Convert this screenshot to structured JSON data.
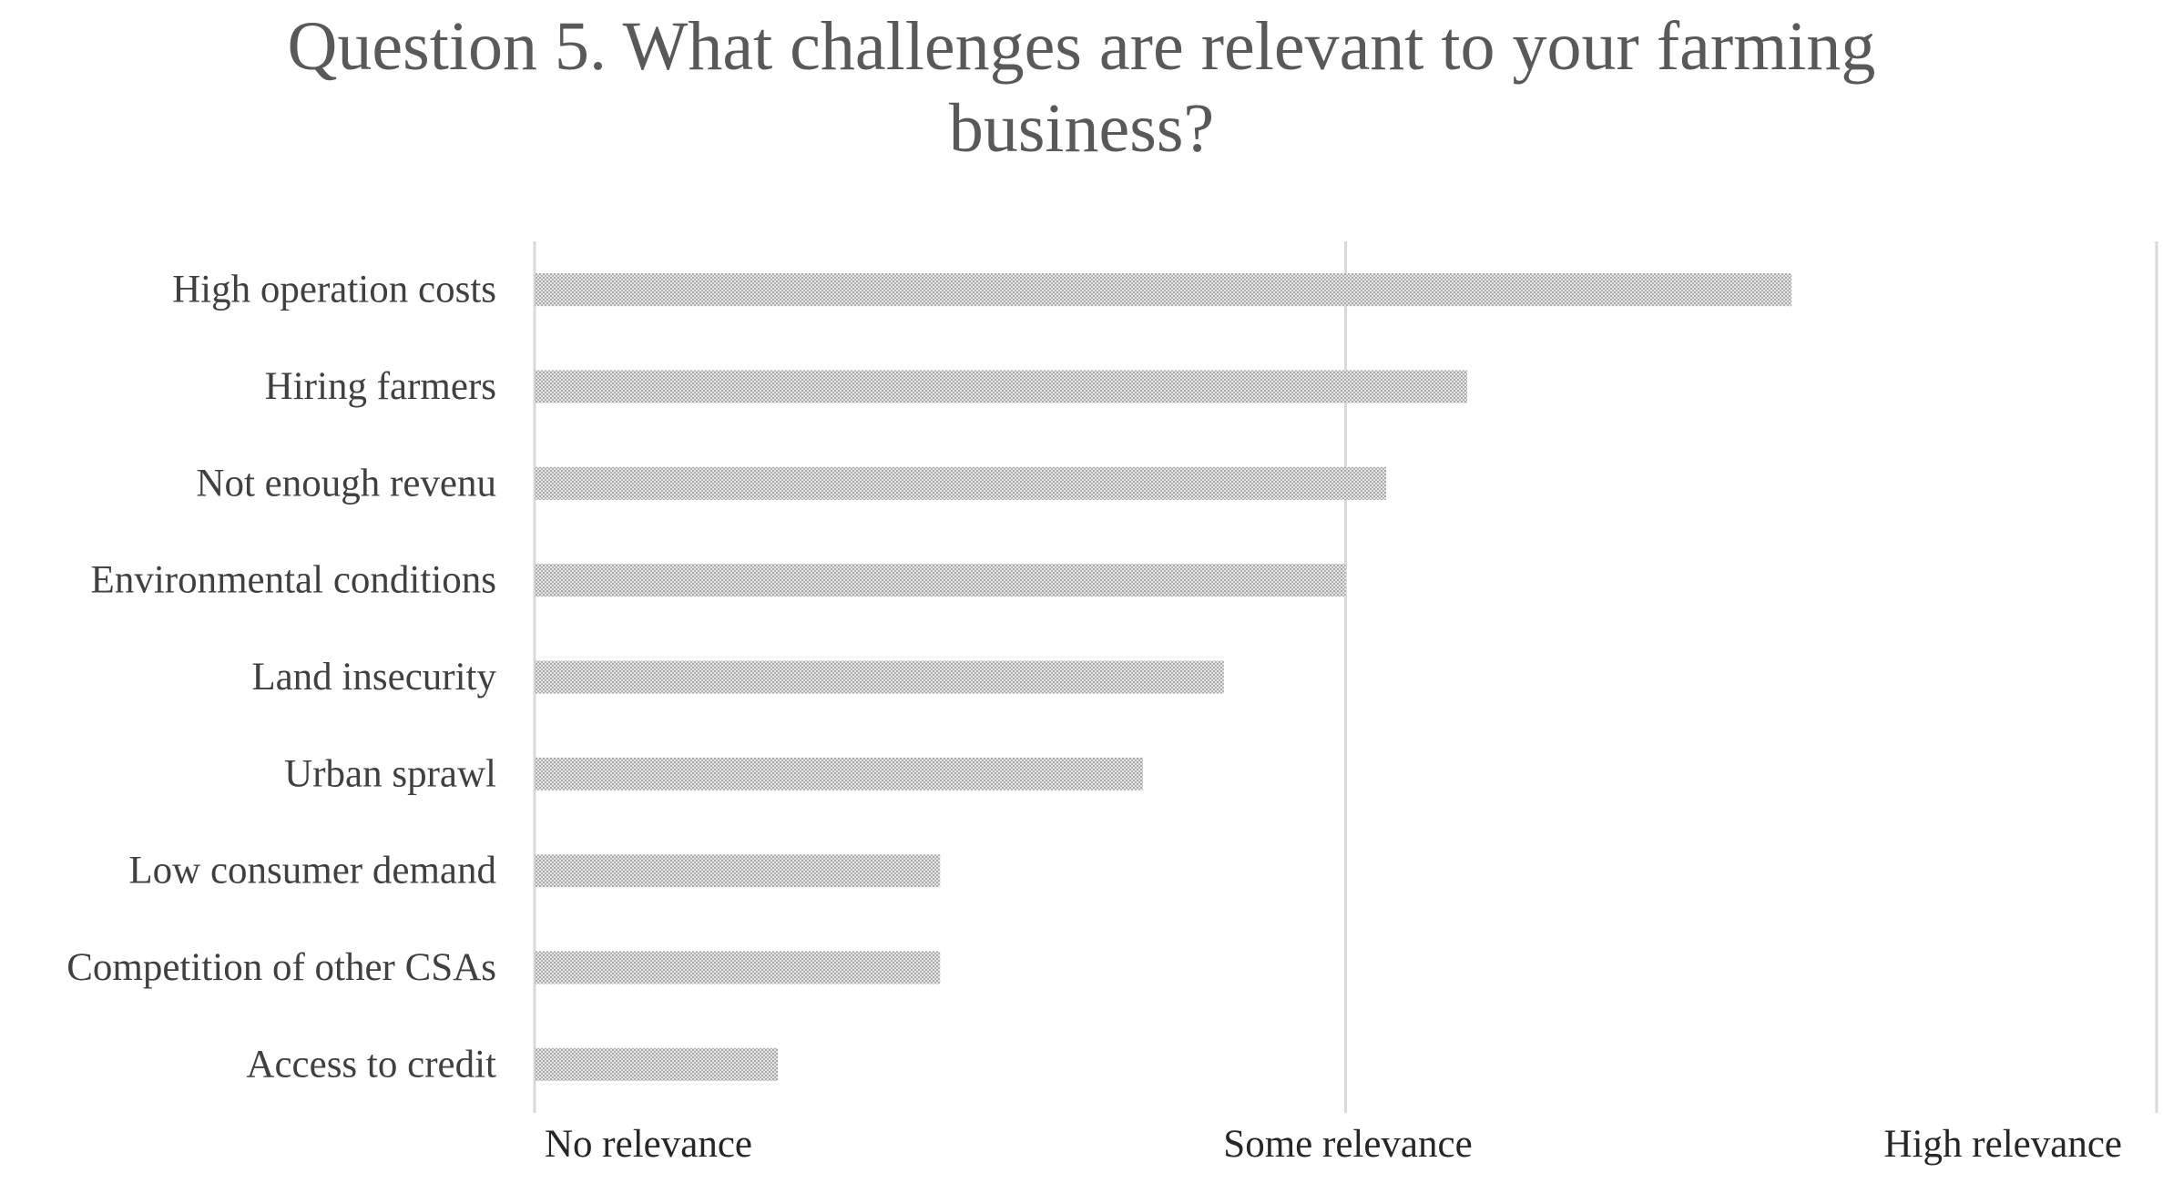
{
  "chart_data": {
    "type": "bar",
    "orientation": "horizontal",
    "title": "Question 5. What challenges are relevant to your farming business?",
    "categories": [
      "High operation costs",
      "Hiring farmers",
      "Not enough revenu",
      "Environmental conditions",
      "Land insecurity",
      "Urban sprawl",
      "Low consumer demand",
      "Competition of other CSAs",
      "Access to credit"
    ],
    "values": [
      1.55,
      1.15,
      1.05,
      1.0,
      0.85,
      0.75,
      0.5,
      0.5,
      0.3
    ],
    "xlim": [
      0,
      2
    ],
    "x_ticks": [
      0,
      1,
      2
    ],
    "x_tick_labels": [
      "No relevance",
      "Some relevance",
      "High relevance"
    ],
    "xlabel": "",
    "ylabel": "",
    "grid": true,
    "legend": "none",
    "bar_color": "#c8c8c8",
    "bar_pattern": "dotted",
    "grid_color": "#d9d9d9"
  }
}
